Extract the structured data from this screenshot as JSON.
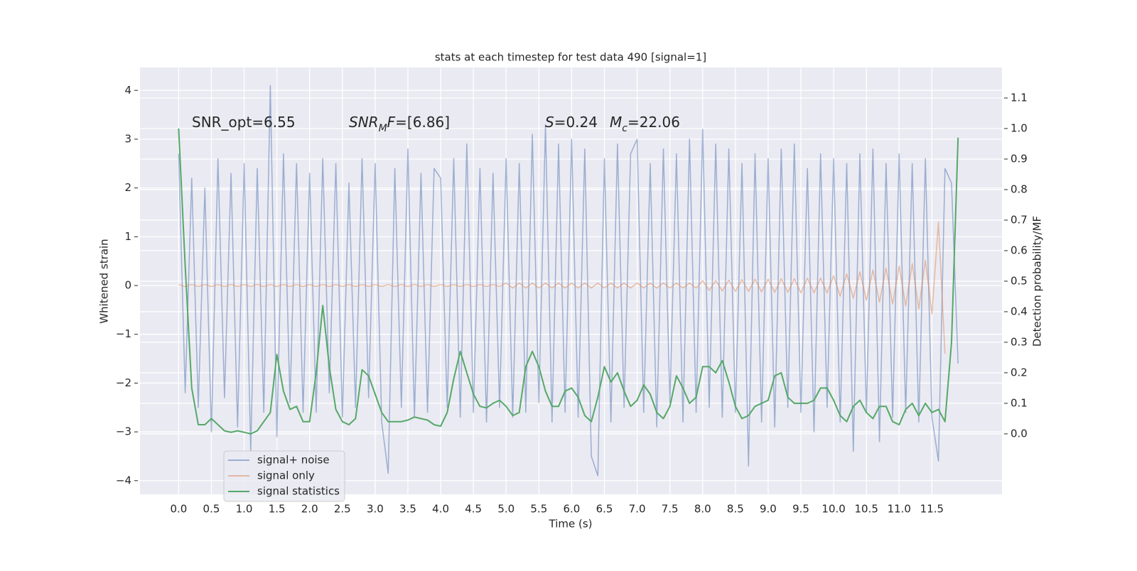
{
  "chart_data": {
    "type": "line",
    "title": "stats at each timestep for test data 490 [signal=1]",
    "xlabel": "Time (s)",
    "ylabel": "Whitened strain",
    "y2label": "Detection probability/MF",
    "annotations": [
      [
        {
          "text": "SNR_opt=6.55"
        }
      ],
      [
        {
          "text": "SNR",
          "italic": true
        },
        {
          "text": "M",
          "italic": true,
          "sub": true
        },
        {
          "text": "F",
          "italic": true
        },
        {
          "text": "=[6.86]"
        }
      ],
      [
        {
          "text": "S",
          "italic": true
        },
        {
          "text": "=0.24"
        }
      ],
      [
        {
          "text": "M",
          "italic": true
        },
        {
          "text": "c",
          "italic": true,
          "sub": true
        },
        {
          "text": "=22.06"
        }
      ]
    ],
    "xlim": [
      -0.59,
      12.57
    ],
    "ylim": [
      -4.28,
      4.47
    ],
    "y2lim": [
      -0.198,
      1.2
    ],
    "xticks": [
      {
        "value": 0,
        "label": "0.0"
      },
      0.5,
      {
        "value": 1,
        "label": "1.0"
      },
      1.5,
      {
        "value": 2,
        "label": "2.0"
      },
      2.5,
      {
        "value": 3,
        "label": "3.0"
      },
      3.5,
      {
        "value": 4,
        "label": "4.0"
      },
      4.5,
      {
        "value": 5,
        "label": "5.0"
      },
      5.5,
      {
        "value": 6,
        "label": "6.0"
      },
      6.5,
      {
        "value": 7,
        "label": "7.0"
      },
      7.5,
      {
        "value": 8,
        "label": "8.0"
      },
      8.5,
      {
        "value": 9,
        "label": "9.0"
      },
      9.5,
      {
        "value": 10,
        "label": "10.0"
      },
      10.5,
      {
        "value": 11,
        "label": "11.0"
      },
      11.5
    ],
    "yticks": [
      {
        "value": -4,
        "label": "−4"
      },
      {
        "value": -3,
        "label": "−3"
      },
      {
        "value": -2,
        "label": "−2"
      },
      {
        "value": -1,
        "label": "−1"
      },
      0,
      1,
      2,
      3,
      4
    ],
    "y2ticks": [
      {
        "value": 0,
        "label": "0.0"
      },
      0.1,
      0.2,
      0.3,
      0.4,
      0.5,
      0.6,
      0.7,
      0.8,
      0.9,
      {
        "value": 1,
        "label": "1.0"
      },
      1.1
    ],
    "grid": true,
    "legend": "lower left",
    "x": [
      0,
      0.1,
      0.2,
      0.3,
      0.4,
      0.5,
      0.6,
      0.7,
      0.8,
      0.9,
      1,
      1.1,
      1.2,
      1.3,
      1.4,
      1.5,
      1.6,
      1.7,
      1.8,
      1.9,
      2,
      2.1,
      2.2,
      2.3,
      2.4,
      2.5,
      2.6,
      2.7,
      2.8,
      2.9,
      3,
      3.1,
      3.2,
      3.3,
      3.4,
      3.5,
      3.6,
      3.7,
      3.8,
      3.9,
      4,
      4.1,
      4.2,
      4.3,
      4.4,
      4.5,
      4.6,
      4.7,
      4.8,
      4.9,
      5,
      5.1,
      5.2,
      5.3,
      5.4,
      5.5,
      5.6,
      5.7,
      5.8,
      5.9,
      6,
      6.1,
      6.2,
      6.3,
      6.4,
      6.5,
      6.6,
      6.7,
      6.8,
      6.9,
      7,
      7.1,
      7.2,
      7.3,
      7.4,
      7.5,
      7.6,
      7.7,
      7.8,
      7.9,
      8,
      8.1,
      8.2,
      8.3,
      8.4,
      8.5,
      8.6,
      8.7,
      8.8,
      8.9,
      9,
      9.1,
      9.2,
      9.3,
      9.4,
      9.5,
      9.6,
      9.7,
      9.8,
      9.9,
      10,
      10.1,
      10.2,
      10.3,
      10.4,
      10.5,
      10.6,
      10.7,
      10.8,
      10.9,
      11,
      11.1,
      11.2,
      11.3,
      11.4,
      11.5,
      11.6,
      11.7,
      11.8,
      11.9
    ],
    "series": [
      {
        "name": "signal+ noise",
        "color": "#4c72b0",
        "opacity": 0.5,
        "values": [
          2.7,
          -2.2,
          2.2,
          -2.5,
          2.0,
          -3.0,
          2.6,
          -2.3,
          2.3,
          -2.9,
          2.5,
          -3.4,
          2.4,
          -2.6,
          4.1,
          -3.1,
          2.7,
          -2.4,
          2.5,
          -2.6,
          2.3,
          -2.6,
          2.6,
          -2.2,
          2.5,
          -2.7,
          2.1,
          -2.5,
          2.6,
          -2.3,
          2.5,
          -2.8,
          -3.85,
          2.4,
          -2.5,
          2.8,
          -2.7,
          2.3,
          -2.6,
          2.4,
          2.2,
          -2.5,
          2.6,
          -2.7,
          2.9,
          -2.6,
          2.4,
          -2.8,
          2.3,
          -2.5,
          2.6,
          -2.7,
          2.5,
          -2.6,
          3.1,
          -2.4,
          3.3,
          -2.8,
          2.9,
          -2.6,
          3.0,
          -2.7,
          2.8,
          -3.5,
          -3.9,
          2.6,
          -2.8,
          2.9,
          -2.5,
          2.7,
          3.0,
          -2.6,
          2.5,
          -2.9,
          2.8,
          -2.4,
          2.7,
          -2.8,
          3.0,
          -2.6,
          3.2,
          -2.5,
          2.9,
          -2.7,
          2.8,
          -2.6,
          2.5,
          -3.7,
          2.7,
          -2.8,
          2.6,
          -2.9,
          2.8,
          -2.5,
          2.9,
          -2.6,
          2.4,
          -3.0,
          2.7,
          -2.5,
          2.6,
          -2.8,
          2.5,
          -3.4,
          2.7,
          -2.6,
          2.8,
          -3.2,
          2.5,
          -2.7,
          2.7,
          -2.6,
          2.5,
          -2.8,
          2.6,
          -2.7,
          -3.6,
          2.4,
          2.1,
          -1.6
        ]
      },
      {
        "name": "signal only",
        "color": "#dd8452",
        "opacity": 0.5,
        "values": [
          0.02,
          -0.02,
          0.02,
          -0.02,
          0.02,
          -0.02,
          0.02,
          -0.02,
          0.02,
          -0.02,
          0.02,
          -0.02,
          0.02,
          -0.02,
          0.02,
          -0.02,
          0.02,
          -0.02,
          0.02,
          -0.02,
          0.02,
          -0.02,
          0.02,
          -0.02,
          0.02,
          -0.02,
          0.02,
          -0.02,
          0.02,
          -0.02,
          0.02,
          -0.02,
          0.02,
          -0.02,
          0.02,
          -0.02,
          0.02,
          -0.02,
          0.02,
          -0.02,
          0.02,
          -0.02,
          0.02,
          -0.02,
          0.02,
          -0.02,
          0.02,
          -0.02,
          0.02,
          -0.02,
          0.05,
          -0.05,
          0.05,
          -0.05,
          0.05,
          -0.05,
          0.05,
          -0.05,
          0.05,
          -0.05,
          0.05,
          -0.05,
          0.05,
          -0.05,
          0.05,
          -0.05,
          0.05,
          -0.05,
          0.05,
          -0.05,
          0.05,
          -0.05,
          0.05,
          -0.05,
          0.05,
          -0.05,
          0.05,
          -0.05,
          0.05,
          -0.05,
          0.1,
          -0.1,
          0.1,
          -0.11,
          0.11,
          -0.12,
          0.12,
          -0.12,
          0.13,
          -0.13,
          0.13,
          -0.14,
          0.14,
          -0.14,
          0.14,
          -0.15,
          0.15,
          -0.15,
          0.15,
          -0.15,
          0.2,
          -0.22,
          0.24,
          -0.26,
          0.28,
          -0.3,
          0.32,
          -0.34,
          0.36,
          -0.38,
          0.4,
          -0.42,
          0.45,
          -0.48,
          0.52,
          -0.58,
          1.3,
          -1.4,
          null,
          null
        ]
      },
      {
        "name": "signal statistics",
        "color": "#55a868",
        "axis": "y2",
        "opacity": 1,
        "values": [
          1.0,
          0.55,
          0.15,
          0.03,
          0.03,
          0.05,
          0.03,
          0.01,
          0.005,
          0.01,
          0.005,
          0.0,
          0.01,
          0.04,
          0.07,
          0.26,
          0.14,
          0.08,
          0.09,
          0.04,
          0.04,
          0.2,
          0.42,
          0.22,
          0.08,
          0.04,
          0.03,
          0.05,
          0.21,
          0.19,
          0.13,
          0.07,
          0.04,
          0.04,
          0.04,
          0.045,
          0.055,
          0.05,
          0.045,
          0.03,
          0.025,
          0.07,
          0.18,
          0.27,
          0.2,
          0.13,
          0.09,
          0.085,
          0.1,
          0.11,
          0.09,
          0.06,
          0.07,
          0.22,
          0.27,
          0.22,
          0.14,
          0.09,
          0.09,
          0.14,
          0.15,
          0.12,
          0.06,
          0.04,
          0.12,
          0.22,
          0.17,
          0.2,
          0.14,
          0.09,
          0.11,
          0.16,
          0.13,
          0.07,
          0.05,
          0.09,
          0.19,
          0.15,
          0.1,
          0.12,
          0.22,
          0.22,
          0.2,
          0.24,
          0.17,
          0.09,
          0.05,
          0.06,
          0.09,
          0.1,
          0.11,
          0.19,
          0.2,
          0.12,
          0.1,
          0.1,
          0.1,
          0.11,
          0.15,
          0.15,
          0.11,
          0.06,
          0.04,
          0.09,
          0.11,
          0.07,
          0.05,
          0.09,
          0.09,
          0.04,
          0.03,
          0.08,
          0.1,
          0.06,
          0.1,
          0.07,
          0.08,
          0.04,
          0.3,
          0.97
        ]
      }
    ]
  }
}
